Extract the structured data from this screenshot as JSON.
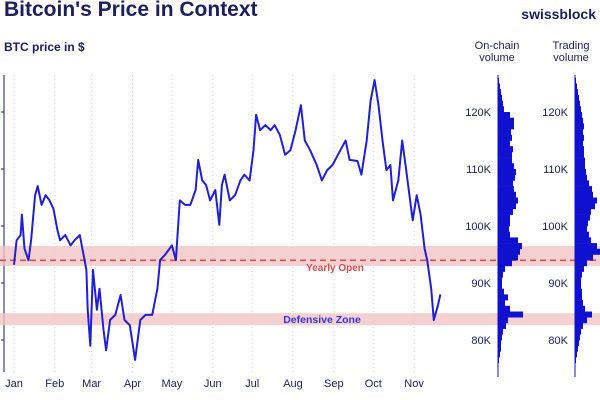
{
  "header": {
    "title": "Bitcoin's Price in Context",
    "subtitle": "BTC price in $",
    "brand": "swissblock"
  },
  "panels": {
    "onchain_label_1": "On-chain",
    "onchain_label_2": "volume",
    "trading_label_1": "Trading",
    "trading_label_2": "volume"
  },
  "colors": {
    "line": "#1f1fd6",
    "bar": "#1010d0",
    "band": "#f2c4c4",
    "yearly_open": "#e0474c",
    "text": "#1b1f5e"
  },
  "chart_data": {
    "type": "line",
    "title": "Bitcoin's Price in Context",
    "ylabel": "BTC price in $",
    "ylim": [
      73000,
      127000
    ],
    "x_unit": "day of year",
    "xticks": [
      {
        "label": "Jan",
        "day": 0
      },
      {
        "label": "Feb",
        "day": 31
      },
      {
        "label": "Mar",
        "day": 59
      },
      {
        "label": "Apr",
        "day": 90
      },
      {
        "label": "May",
        "day": 120
      },
      {
        "label": "Jun",
        "day": 151
      },
      {
        "label": "Jul",
        "day": 181
      },
      {
        "label": "Aug",
        "day": 212
      },
      {
        "label": "Sep",
        "day": 243
      },
      {
        "label": "Oct",
        "day": 273
      },
      {
        "label": "Nov",
        "day": 304
      }
    ],
    "yticks": [
      {
        "label": "80K",
        "value": 80000
      },
      {
        "label": "90K",
        "value": 90000
      },
      {
        "label": "100K",
        "value": 100000
      },
      {
        "label": "110K",
        "value": 110000
      },
      {
        "label": "120K",
        "value": 120000
      }
    ],
    "series": [
      {
        "name": "BTC price",
        "x": [
          0,
          2,
          5,
          6,
          8,
          11,
          13,
          16,
          18,
          21,
          24,
          27,
          30,
          33,
          35,
          39,
          43,
          46,
          50,
          52,
          55,
          56,
          58,
          60,
          63,
          65,
          68,
          70,
          73,
          77,
          81,
          84,
          88,
          92,
          96,
          100,
          105,
          109,
          111,
          115,
          120,
          123,
          126,
          130,
          134,
          138,
          140,
          143,
          146,
          149,
          153,
          156,
          158,
          160,
          164,
          168,
          172,
          175,
          179,
          182,
          184,
          187,
          191,
          195,
          198,
          202,
          206,
          210,
          214,
          218,
          221,
          225,
          230,
          234,
          238,
          242,
          248,
          252,
          255,
          261,
          264,
          268,
          271,
          274,
          277,
          280,
          283,
          286,
          288,
          292,
          295,
          298,
          301,
          303,
          306,
          309,
          312,
          314,
          317,
          319,
          322,
          324
        ],
        "y": [
          93200,
          97500,
          98400,
          102000,
          96000,
          94000,
          97500,
          105400,
          107000,
          103700,
          105400,
          104500,
          103000,
          99300,
          97500,
          98400,
          96600,
          97500,
          98400,
          96000,
          92300,
          85300,
          79000,
          92300,
          85300,
          89000,
          81800,
          78200,
          83500,
          84400,
          87900,
          83500,
          82600,
          76500,
          83500,
          84400,
          84400,
          89000,
          94000,
          95000,
          96600,
          94000,
          104500,
          103700,
          103700,
          106300,
          111600,
          108000,
          107200,
          104500,
          106300,
          100200,
          107200,
          109000,
          104500,
          105400,
          108000,
          109000,
          108000,
          113300,
          119500,
          116800,
          117700,
          116800,
          117700,
          116000,
          112500,
          113300,
          116800,
          121200,
          115000,
          113300,
          110700,
          108000,
          109800,
          110700,
          113300,
          115000,
          111600,
          111400,
          109000,
          115000,
          122000,
          125600,
          121200,
          115000,
          109800,
          110700,
          104500,
          108000,
          115000,
          109800,
          104500,
          101000,
          105400,
          102000,
          96000,
          94000,
          89000,
          83500,
          86000,
          88000
        ]
      }
    ],
    "annotations": [
      {
        "label": "Yearly Open",
        "type": "hline",
        "value": 94000
      },
      {
        "label": "",
        "type": "band",
        "range": [
          93000,
          96500
        ]
      },
      {
        "label": "Defensive Zone",
        "type": "band",
        "range": [
          82600,
          84700
        ]
      }
    ],
    "volume_profiles": {
      "bin_start": 76000,
      "bin_size": 1000,
      "on_chain": [
        1,
        2,
        3,
        3,
        4,
        5,
        8,
        10,
        25,
        12,
        7,
        10,
        6,
        4,
        4,
        5,
        7,
        14,
        20,
        22,
        24,
        20,
        12,
        11,
        12,
        12,
        15,
        18,
        20,
        18,
        16,
        15,
        17,
        18,
        16,
        14,
        14,
        15,
        12,
        14,
        13,
        16,
        16,
        12,
        6,
        5,
        4,
        3,
        2,
        1
      ],
      "trading": [
        1,
        2,
        3,
        4,
        5,
        6,
        8,
        12,
        17,
        10,
        8,
        7,
        7,
        6,
        6,
        7,
        9,
        12,
        18,
        25,
        22,
        16,
        14,
        12,
        13,
        15,
        16,
        20,
        22,
        18,
        17,
        14,
        12,
        11,
        10,
        10,
        9,
        9,
        8,
        9,
        8,
        9,
        8,
        7,
        6,
        5,
        4,
        3,
        2,
        1
      ]
    }
  }
}
